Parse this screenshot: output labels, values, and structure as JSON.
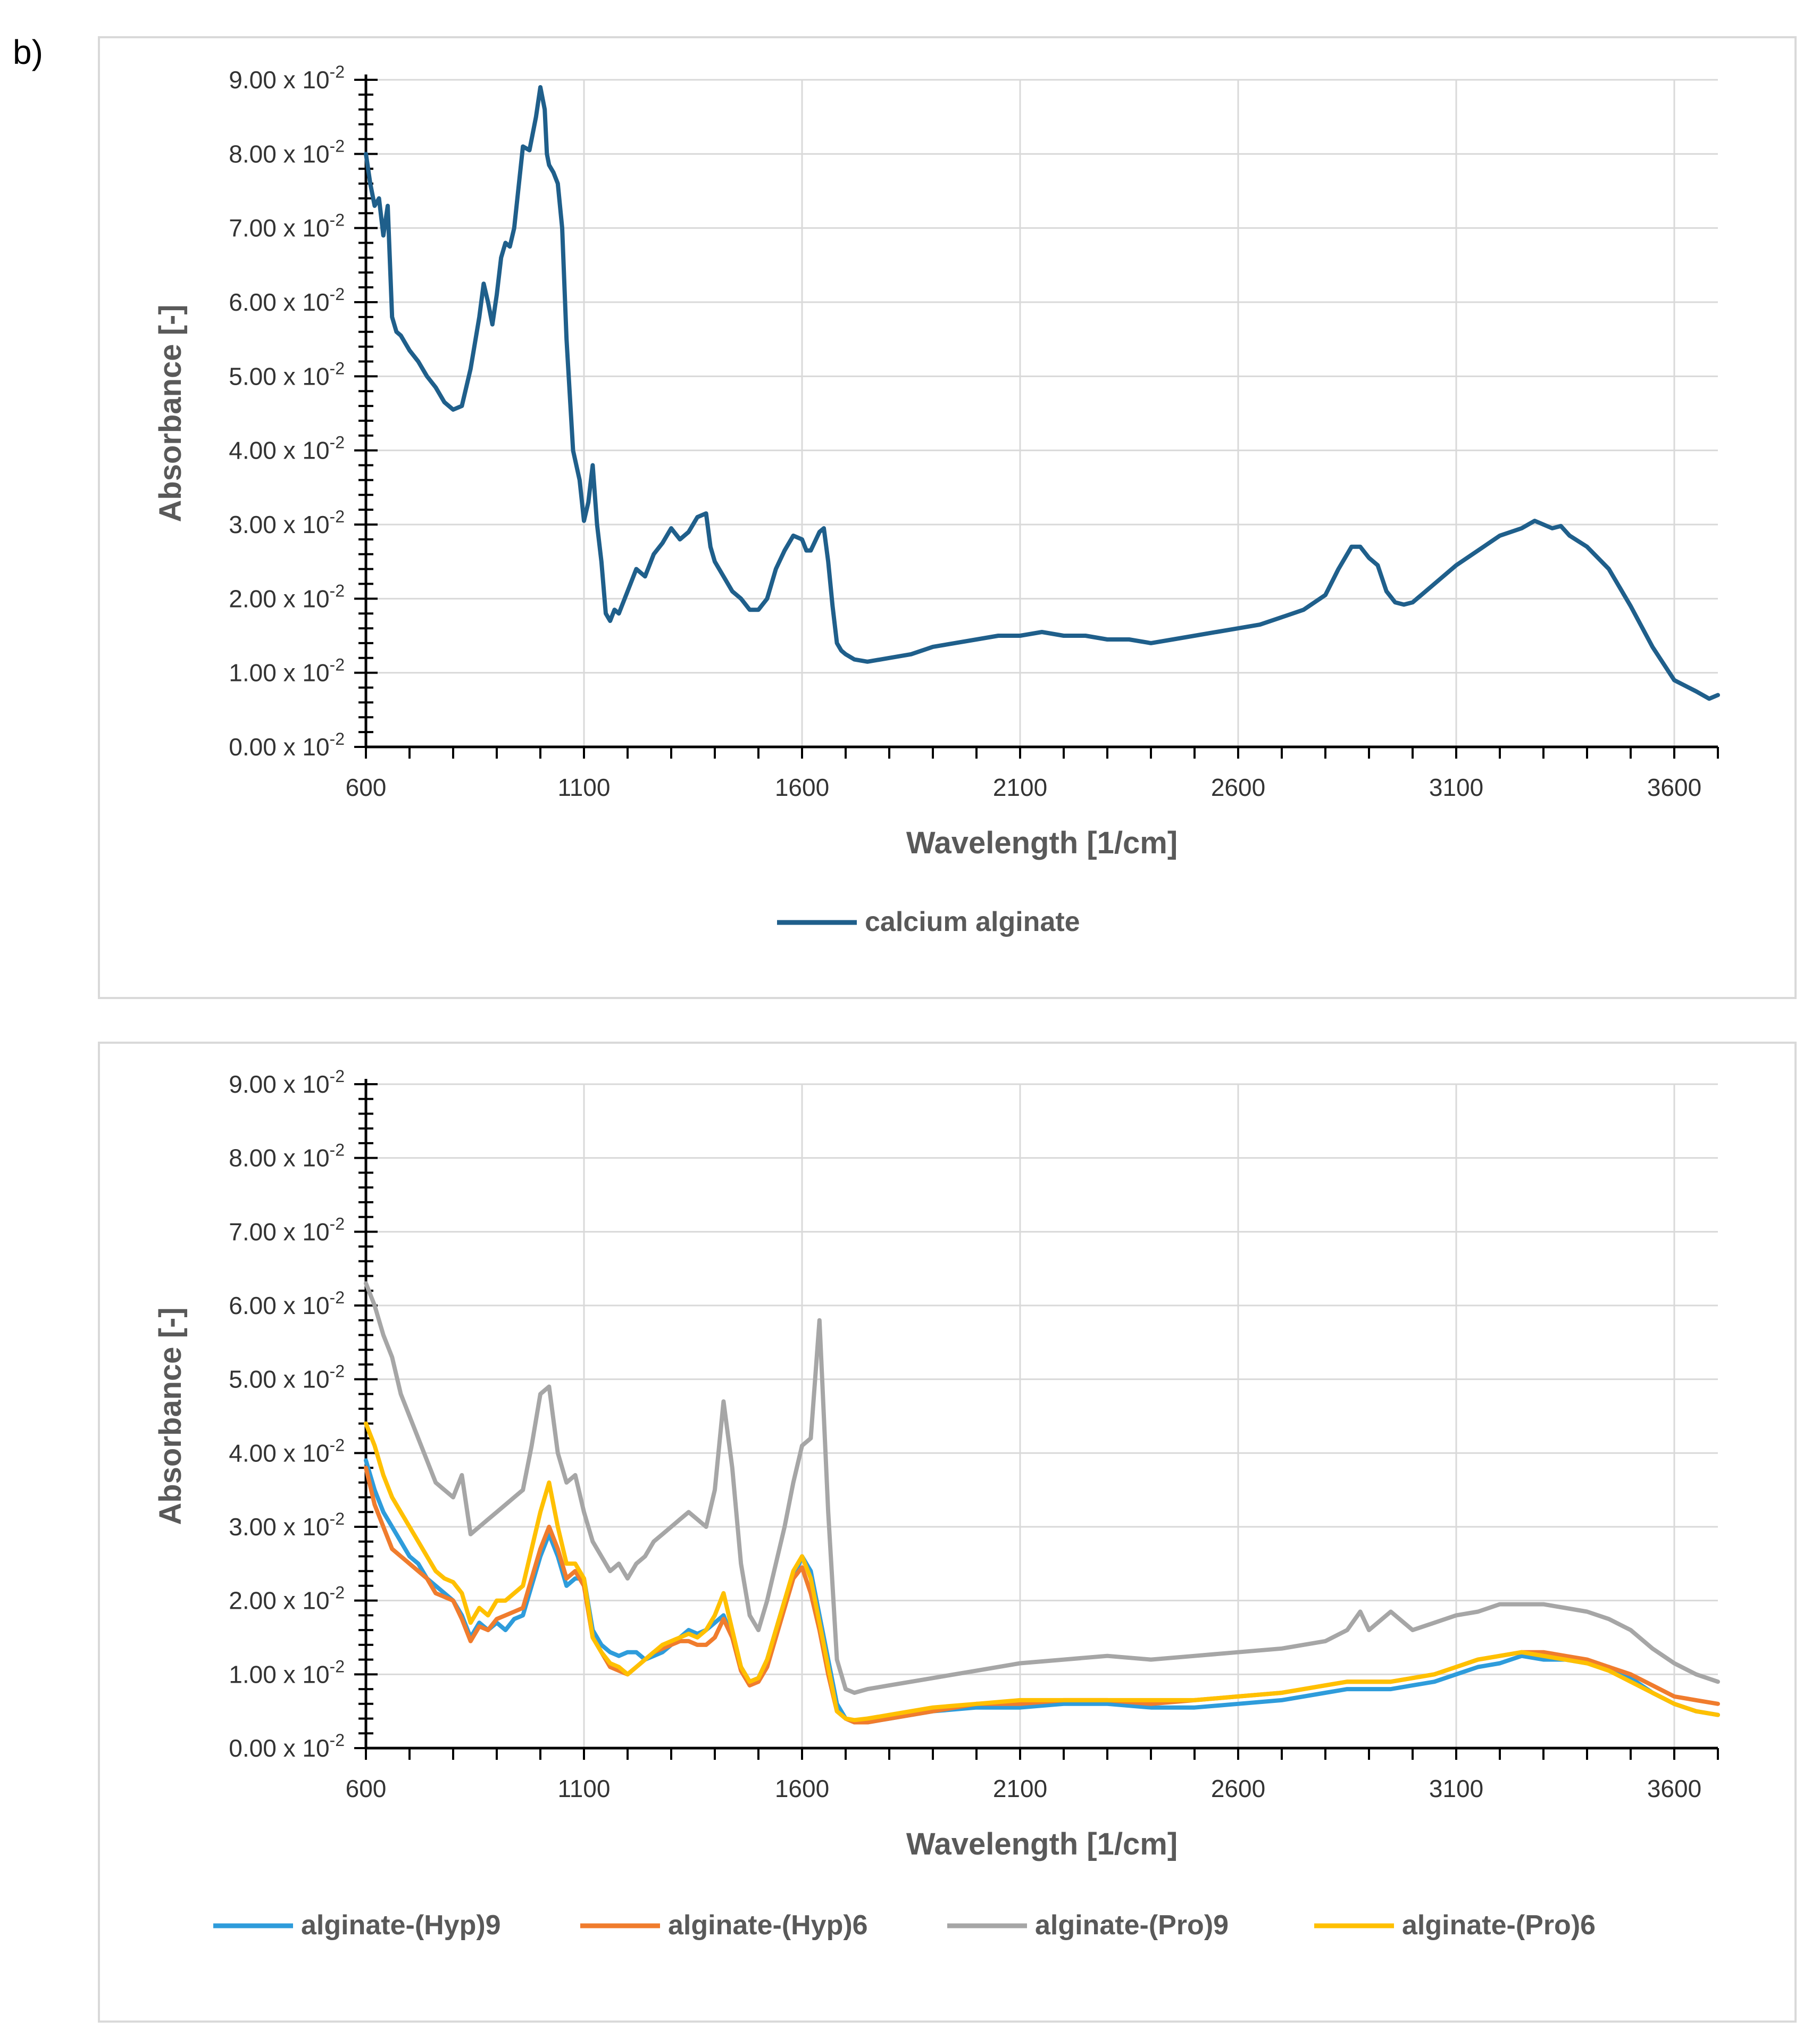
{
  "figure": {
    "panel_letter": "b)"
  },
  "chart_data": [
    {
      "type": "line",
      "title": "",
      "xlabel": "Wavelength [1/cm]",
      "ylabel": "Absorbance [-]",
      "xlim": [
        600,
        3700
      ],
      "ylim": [
        0,
        9
      ],
      "x_ticks": [
        600,
        1100,
        1600,
        2100,
        2600,
        3100,
        3600
      ],
      "y_ticks": [
        0,
        1,
        2,
        3,
        4,
        5,
        6,
        7,
        8,
        9
      ],
      "y_tick_labels": [
        "0.00 x 10",
        "1.00 x 10",
        "2.00 x 10",
        "3.00 x 10",
        "4.00 x 10",
        "5.00 x 10",
        "6.00 x 10",
        "7.00 x 10",
        "8.00 x 10",
        "9.00 x 10"
      ],
      "y_tick_exponent": "-2",
      "grid": true,
      "legend_position": "bottom",
      "series": [
        {
          "name": "calcium alginate",
          "color": "#1f5f8b",
          "x": [
            600,
            610,
            620,
            630,
            640,
            650,
            660,
            670,
            680,
            700,
            720,
            740,
            760,
            780,
            800,
            820,
            840,
            860,
            870,
            880,
            890,
            900,
            910,
            920,
            930,
            940,
            960,
            975,
            990,
            1000,
            1010,
            1015,
            1020,
            1030,
            1040,
            1050,
            1060,
            1075,
            1090,
            1100,
            1110,
            1120,
            1130,
            1140,
            1150,
            1160,
            1170,
            1180,
            1190,
            1200,
            1220,
            1240,
            1260,
            1280,
            1300,
            1320,
            1340,
            1360,
            1380,
            1390,
            1400,
            1420,
            1440,
            1460,
            1480,
            1500,
            1520,
            1540,
            1560,
            1580,
            1600,
            1610,
            1620,
            1640,
            1650,
            1660,
            1670,
            1680,
            1690,
            1700,
            1720,
            1750,
            1800,
            1850,
            1900,
            1950,
            2000,
            2050,
            2100,
            2150,
            2200,
            2250,
            2300,
            2350,
            2400,
            2450,
            2500,
            2550,
            2600,
            2650,
            2700,
            2750,
            2800,
            2830,
            2860,
            2880,
            2900,
            2920,
            2940,
            2960,
            2980,
            3000,
            3020,
            3050,
            3100,
            3150,
            3200,
            3250,
            3280,
            3300,
            3320,
            3340,
            3360,
            3400,
            3450,
            3500,
            3550,
            3600,
            3650,
            3680,
            3700
          ],
          "y": [
            8.0,
            7.6,
            7.3,
            7.4,
            6.9,
            7.3,
            5.8,
            5.6,
            5.55,
            5.35,
            5.2,
            5.0,
            4.85,
            4.65,
            4.55,
            4.6,
            5.1,
            5.8,
            6.25,
            6.0,
            5.7,
            6.1,
            6.6,
            6.8,
            6.75,
            7.0,
            8.1,
            8.05,
            8.5,
            8.9,
            8.6,
            8.0,
            7.85,
            7.75,
            7.6,
            7.0,
            5.5,
            4.0,
            3.6,
            3.05,
            3.3,
            3.8,
            3.0,
            2.5,
            1.8,
            1.7,
            1.85,
            1.8,
            1.95,
            2.1,
            2.4,
            2.3,
            2.6,
            2.75,
            2.95,
            2.8,
            2.9,
            3.1,
            3.15,
            2.7,
            2.5,
            2.3,
            2.1,
            2.0,
            1.85,
            1.85,
            2.0,
            2.4,
            2.65,
            2.85,
            2.8,
            2.65,
            2.65,
            2.9,
            2.95,
            2.5,
            1.9,
            1.4,
            1.3,
            1.25,
            1.18,
            1.15,
            1.2,
            1.25,
            1.35,
            1.4,
            1.45,
            1.5,
            1.5,
            1.55,
            1.5,
            1.5,
            1.45,
            1.45,
            1.4,
            1.45,
            1.5,
            1.55,
            1.6,
            1.65,
            1.75,
            1.85,
            2.05,
            2.4,
            2.7,
            2.7,
            2.55,
            2.45,
            2.1,
            1.95,
            1.92,
            1.95,
            2.05,
            2.2,
            2.45,
            2.65,
            2.85,
            2.95,
            3.05,
            3.0,
            2.95,
            2.98,
            2.85,
            2.7,
            2.4,
            1.9,
            1.35,
            0.9,
            0.75,
            0.65,
            0.7
          ]
        }
      ]
    },
    {
      "type": "line",
      "title": "",
      "xlabel": "Wavelength [1/cm]",
      "ylabel": "Absorbance [-]",
      "xlim": [
        600,
        3700
      ],
      "ylim": [
        0,
        9
      ],
      "x_ticks": [
        600,
        1100,
        1600,
        2100,
        2600,
        3100,
        3600
      ],
      "y_ticks": [
        0,
        1,
        2,
        3,
        4,
        5,
        6,
        7,
        8,
        9
      ],
      "y_tick_labels": [
        "0.00 x 10",
        "1.00 x 10",
        "2.00 x 10",
        "3.00 x 10",
        "4.00 x 10",
        "5.00 x 10",
        "6.00 x 10",
        "7.00 x 10",
        "8.00 x 10",
        "9.00 x 10"
      ],
      "y_tick_exponent": "-2",
      "grid": true,
      "legend_position": "bottom",
      "x": [
        600,
        620,
        640,
        660,
        680,
        700,
        720,
        740,
        760,
        780,
        800,
        820,
        840,
        860,
        880,
        900,
        920,
        940,
        960,
        980,
        1000,
        1020,
        1040,
        1060,
        1080,
        1100,
        1120,
        1140,
        1160,
        1180,
        1200,
        1220,
        1240,
        1260,
        1280,
        1300,
        1320,
        1340,
        1360,
        1380,
        1400,
        1420,
        1440,
        1460,
        1480,
        1500,
        1520,
        1540,
        1560,
        1580,
        1600,
        1620,
        1640,
        1660,
        1680,
        1700,
        1720,
        1750,
        1800,
        1900,
        2000,
        2100,
        2200,
        2300,
        2400,
        2500,
        2600,
        2700,
        2800,
        2850,
        2880,
        2900,
        2950,
        3000,
        3050,
        3100,
        3150,
        3200,
        3250,
        3300,
        3350,
        3400,
        3450,
        3500,
        3550,
        3600,
        3650,
        3700
      ],
      "series": [
        {
          "name": "alginate-(Hyp)9",
          "color": "#2e9cdb",
          "y": [
            3.9,
            3.5,
            3.2,
            3.0,
            2.8,
            2.6,
            2.5,
            2.3,
            2.2,
            2.1,
            2.0,
            1.8,
            1.5,
            1.7,
            1.6,
            1.7,
            1.6,
            1.75,
            1.8,
            2.2,
            2.6,
            2.9,
            2.6,
            2.2,
            2.3,
            2.3,
            1.6,
            1.4,
            1.3,
            1.25,
            1.3,
            1.3,
            1.2,
            1.25,
            1.3,
            1.4,
            1.5,
            1.6,
            1.55,
            1.6,
            1.7,
            1.8,
            1.5,
            1.1,
            0.9,
            0.95,
            1.2,
            1.6,
            2.0,
            2.3,
            2.6,
            2.4,
            1.8,
            1.2,
            0.6,
            0.4,
            0.35,
            0.35,
            0.4,
            0.5,
            0.55,
            0.55,
            0.6,
            0.6,
            0.55,
            0.55,
            0.6,
            0.65,
            0.75,
            0.8,
            0.8,
            0.8,
            0.8,
            0.85,
            0.9,
            1.0,
            1.1,
            1.15,
            1.25,
            1.2,
            1.2,
            1.15,
            1.1,
            0.95,
            0.75,
            0.6,
            0.5,
            0.45
          ]
        },
        {
          "name": "alginate-(Hyp)6",
          "color": "#f07c2d",
          "y": [
            3.8,
            3.3,
            3.0,
            2.7,
            2.6,
            2.5,
            2.4,
            2.3,
            2.1,
            2.05,
            2.0,
            1.75,
            1.45,
            1.65,
            1.6,
            1.75,
            1.8,
            1.85,
            1.9,
            2.3,
            2.7,
            3.0,
            2.7,
            2.3,
            2.4,
            2.2,
            1.5,
            1.3,
            1.1,
            1.05,
            1.0,
            1.1,
            1.2,
            1.3,
            1.35,
            1.4,
            1.45,
            1.45,
            1.4,
            1.4,
            1.5,
            1.75,
            1.5,
            1.05,
            0.85,
            0.9,
            1.1,
            1.5,
            1.9,
            2.3,
            2.45,
            2.1,
            1.6,
            1.0,
            0.5,
            0.4,
            0.35,
            0.35,
            0.4,
            0.5,
            0.6,
            0.6,
            0.65,
            0.65,
            0.6,
            0.65,
            0.7,
            0.75,
            0.85,
            0.9,
            0.9,
            0.9,
            0.9,
            0.95,
            1.0,
            1.1,
            1.2,
            1.25,
            1.3,
            1.3,
            1.25,
            1.2,
            1.1,
            1.0,
            0.85,
            0.7,
            0.65,
            0.6
          ]
        },
        {
          "name": "alginate-(Pro)9",
          "color": "#a6a6a6",
          "y": [
            6.3,
            6.0,
            5.6,
            5.3,
            4.8,
            4.5,
            4.2,
            3.9,
            3.6,
            3.5,
            3.4,
            3.7,
            2.9,
            3.0,
            3.1,
            3.2,
            3.3,
            3.4,
            3.5,
            4.1,
            4.8,
            4.9,
            4.0,
            3.6,
            3.7,
            3.2,
            2.8,
            2.6,
            2.4,
            2.5,
            2.3,
            2.5,
            2.6,
            2.8,
            2.9,
            3.0,
            3.1,
            3.2,
            3.1,
            3.0,
            3.5,
            4.7,
            3.8,
            2.5,
            1.8,
            1.6,
            2.0,
            2.5,
            3.0,
            3.6,
            4.1,
            4.2,
            5.8,
            3.2,
            1.2,
            0.8,
            0.75,
            0.8,
            0.85,
            0.95,
            1.05,
            1.15,
            1.2,
            1.25,
            1.2,
            1.25,
            1.3,
            1.35,
            1.45,
            1.6,
            1.85,
            1.6,
            1.85,
            1.6,
            1.7,
            1.8,
            1.85,
            1.95,
            1.95,
            1.95,
            1.9,
            1.85,
            1.75,
            1.6,
            1.35,
            1.15,
            1.0,
            0.9
          ]
        },
        {
          "name": "alginate-(Pro)6",
          "color": "#ffc000",
          "y": [
            4.4,
            4.1,
            3.7,
            3.4,
            3.2,
            3.0,
            2.8,
            2.6,
            2.4,
            2.3,
            2.25,
            2.1,
            1.7,
            1.9,
            1.8,
            2.0,
            2.0,
            2.1,
            2.2,
            2.7,
            3.2,
            3.6,
            3.0,
            2.5,
            2.5,
            2.3,
            1.5,
            1.3,
            1.15,
            1.1,
            1.0,
            1.1,
            1.2,
            1.3,
            1.4,
            1.45,
            1.5,
            1.55,
            1.5,
            1.6,
            1.8,
            2.1,
            1.6,
            1.1,
            0.9,
            0.95,
            1.2,
            1.6,
            2.0,
            2.4,
            2.6,
            2.3,
            1.7,
            1.1,
            0.5,
            0.4,
            0.38,
            0.4,
            0.45,
            0.55,
            0.6,
            0.65,
            0.65,
            0.65,
            0.65,
            0.65,
            0.7,
            0.75,
            0.85,
            0.9,
            0.9,
            0.9,
            0.9,
            0.95,
            1.0,
            1.1,
            1.2,
            1.25,
            1.3,
            1.25,
            1.2,
            1.15,
            1.05,
            0.9,
            0.75,
            0.6,
            0.5,
            0.45
          ]
        }
      ]
    }
  ]
}
